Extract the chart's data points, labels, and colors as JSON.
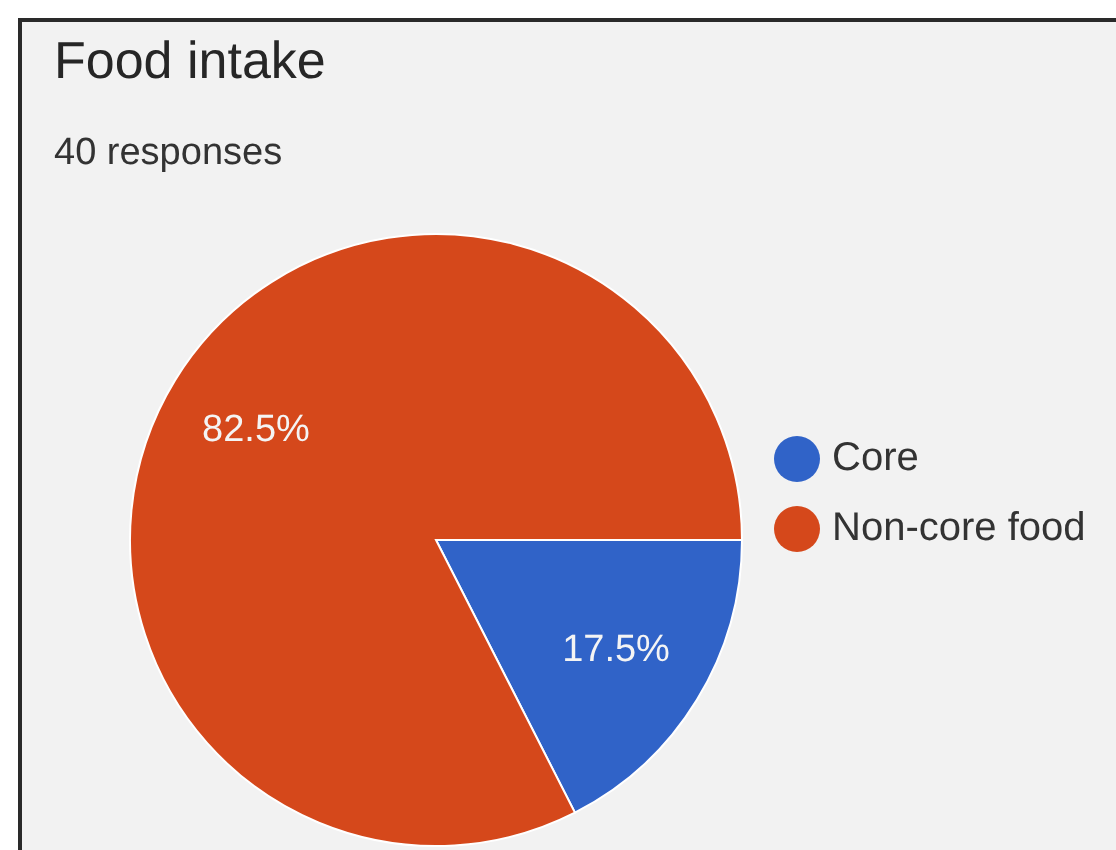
{
  "chart_data": {
    "type": "pie",
    "title": "Food intake",
    "subtitle": "40 responses",
    "categories": [
      "Core",
      "Non-core food"
    ],
    "values": [
      17.5,
      82.5
    ],
    "colors": [
      "#3063c8",
      "#d5481b"
    ],
    "value_labels": [
      "17.5%",
      "82.5%"
    ],
    "legend": "right"
  }
}
